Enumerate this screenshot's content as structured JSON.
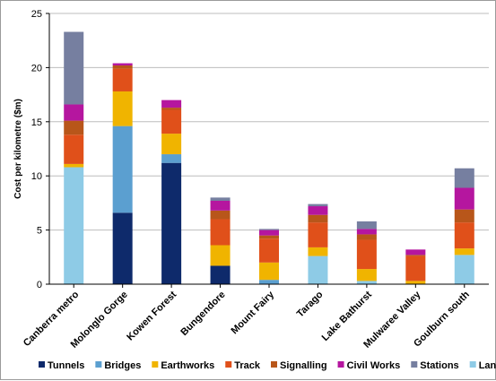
{
  "chart_data": {
    "type": "bar",
    "stacked": true,
    "title": "",
    "xlabel": "",
    "ylabel": "Cost per kilometre ($m)",
    "ylim": [
      0,
      25
    ],
    "yticks": [
      0,
      5,
      10,
      15,
      20,
      25
    ],
    "grid": true,
    "legend_position": "bottom",
    "categories": [
      "Canberra metro",
      "Molonglo Gorge",
      "Kowen Forest",
      "Bungendore",
      "Mount Fairy",
      "Tarago",
      "Lake Bathurst",
      "Mulwaree Valley",
      "Goulburn south"
    ],
    "series": [
      {
        "name": "Tunnels",
        "color": "#0e2a6b",
        "values": [
          0,
          6.6,
          11.2,
          1.7,
          0,
          0,
          0,
          0,
          0
        ]
      },
      {
        "name": "Bridges",
        "color": "#5b9fd0",
        "values": [
          0,
          8.0,
          0.8,
          0,
          0.4,
          0,
          0,
          0,
          0
        ]
      },
      {
        "name": "Earthworks",
        "color": "#f0b400",
        "values": [
          0.3,
          3.2,
          1.9,
          1.9,
          1.6,
          0.8,
          1.1,
          0.3,
          0.6
        ]
      },
      {
        "name": "Track",
        "color": "#e0501a",
        "values": [
          2.7,
          2.1,
          2.2,
          2.4,
          2.2,
          2.3,
          2.7,
          2.3,
          2.4
        ]
      },
      {
        "name": "Signalling",
        "color": "#b8561a",
        "values": [
          1.3,
          0.3,
          0.2,
          0.8,
          0.3,
          0.7,
          0.5,
          0.1,
          1.2
        ]
      },
      {
        "name": "Civil Works",
        "color": "#b5169f",
        "values": [
          1.5,
          0.2,
          0.7,
          0.9,
          0.5,
          0.8,
          0.5,
          0.5,
          2.0
        ]
      },
      {
        "name": "Stations",
        "color": "#767fa0",
        "values": [
          6.7,
          0,
          0,
          0.3,
          0.1,
          0.2,
          0.7,
          0,
          1.8
        ]
      },
      {
        "name": "Land",
        "color": "#8ecbe6",
        "values": [
          10.8,
          0,
          0,
          0,
          0,
          2.6,
          0.3,
          0,
          2.7
        ]
      }
    ],
    "stack_order": [
      "Land",
      "Tunnels",
      "Bridges",
      "Earthworks",
      "Track",
      "Signalling",
      "Civil Works",
      "Stations"
    ]
  }
}
